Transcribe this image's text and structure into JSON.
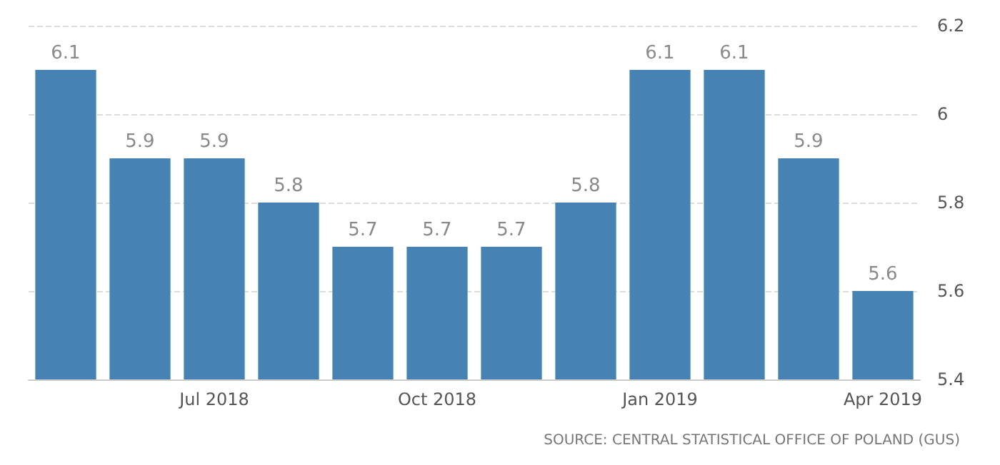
{
  "chart_data": {
    "type": "bar",
    "categories": [
      null,
      null,
      "Jul 2018",
      null,
      null,
      "Oct 2018",
      null,
      null,
      "Jan 2019",
      null,
      null,
      "Apr 2019"
    ],
    "values": [
      6.1,
      5.9,
      5.9,
      5.8,
      5.7,
      5.7,
      5.7,
      5.8,
      6.1,
      6.1,
      5.9,
      5.6
    ],
    "color": "#4682b4",
    "ylim": [
      5.4,
      6.2
    ],
    "yticks": [
      5.4,
      5.6,
      5.8,
      6,
      6.2
    ],
    "grid": "y",
    "data_labels": true,
    "annotations": [
      "SOURCE: CENTRAL STATISTICAL OFFICE OF POLAND (GUS)"
    ]
  }
}
